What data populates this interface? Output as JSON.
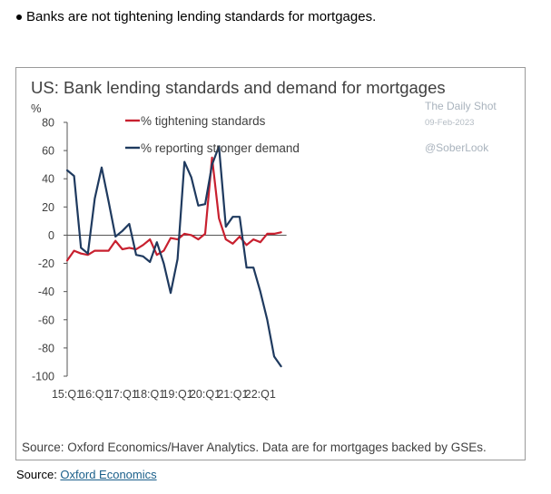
{
  "bullet": {
    "text": "Banks are not tightening lending standards for mortgages."
  },
  "chart_meta": {
    "watermark_name": "The Daily Shot",
    "watermark_date": "09-Feb-2023",
    "watermark_handle": "@SoberLook",
    "source_note": "Source: Oxford Economics/Haver Analytics. Data are for mortgages backed by GSEs."
  },
  "footer": {
    "source_label": "Source: ",
    "link_text": "Oxford Economics"
  },
  "colors": {
    "tightening": "#c8202f",
    "demand": "#1f3a5f",
    "axis": "#555555",
    "text": "#404040"
  },
  "chart_data": {
    "type": "line",
    "title": "US: Bank lending standards and demand for mortgages",
    "ylabel": "%",
    "xlabel": "",
    "ylim": [
      -100,
      80
    ],
    "yticks": [
      80,
      60,
      40,
      20,
      0,
      -20,
      -40,
      -60,
      -80,
      -100
    ],
    "x_tick_labels": [
      "15:Q1",
      "16:Q1",
      "17:Q1",
      "18:Q1",
      "19:Q1",
      "20:Q1",
      "21:Q1",
      "22:Q1"
    ],
    "x_tick_index": [
      0,
      4,
      8,
      12,
      16,
      20,
      24,
      28
    ],
    "legend_position": "top-left",
    "grid": false,
    "series": [
      {
        "name": "% tightening standards",
        "values": [
          -18,
          -11,
          -13,
          -14,
          -11,
          -11,
          -11,
          -4,
          -10,
          -9,
          -10,
          -7,
          -3,
          -14,
          -11,
          -2,
          -3,
          1,
          0,
          -3,
          1,
          55,
          12,
          -3,
          -6,
          -1,
          -7,
          -3,
          -5,
          1,
          1,
          2
        ]
      },
      {
        "name": "% reporting stronger demand",
        "values": [
          46,
          42,
          -9,
          -13,
          26,
          48,
          24,
          -1,
          3,
          8,
          -14,
          -15,
          -19,
          -5,
          -20,
          -41,
          -17,
          52,
          41,
          21,
          22,
          50,
          63,
          6,
          13,
          13,
          -23,
          -23,
          -40,
          -60,
          -86,
          -93
        ]
      }
    ]
  }
}
